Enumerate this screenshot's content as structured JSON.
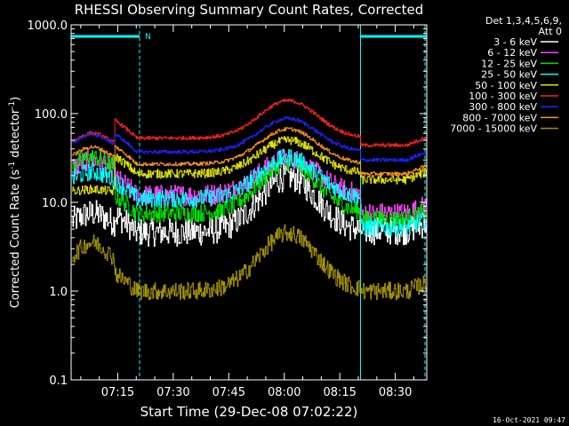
{
  "chart_data": {
    "type": "line",
    "title": "RHESSI Observing Summary Count Rates, Corrected",
    "xlabel": "Start Time (29-Dec-08 07:02:22)",
    "ylabel_main": "Corrected Count Rate (s",
    "ylabel_sup1": "-1",
    "ylabel_mid": " detector",
    "ylabel_sup2": "-1",
    "ylabel_end": ")",
    "y_scale": "log",
    "ylim": [
      0.1,
      1000
    ],
    "xlim_minutes": [
      62.4,
      158.5
    ],
    "x_tick_labels": [
      "07:15",
      "07:30",
      "07:45",
      "08:00",
      "08:15",
      "08:30"
    ],
    "x_tick_minutes": [
      75,
      90,
      105,
      120,
      135,
      150
    ],
    "y_tick_labels": [
      "0.1",
      "1.0",
      "10.0",
      "100.0",
      "1000.0"
    ],
    "y_tick_values": [
      0.1,
      1,
      10,
      100,
      1000
    ],
    "legend_header": [
      "Det 1,3,4,5,6,9,",
      "Att 0"
    ],
    "night_intervals_minutes": [
      [
        62.4,
        80.9
      ],
      [
        140.6,
        158.5
      ]
    ],
    "saa_marker": "N",
    "series": [
      {
        "name": "3 - 6 keV",
        "color": "#ffffff",
        "base": 4.6,
        "peak": 19.5,
        "pre": [
          5.5,
          7.5
        ],
        "post": 4.8,
        "noise": 0.16
      },
      {
        "name": "6 - 12 keV",
        "color": "#ff40ff",
        "base": 12.0,
        "peak": 31.0,
        "pre": [
          22.0,
          30.0
        ],
        "post": 7.5,
        "noise": 0.12
      },
      {
        "name": "12 - 25 keV",
        "color": "#00e000",
        "base": 7.5,
        "peak": 28.0,
        "pre": [
          24.0,
          32.0
        ],
        "post": 6.5,
        "noise": 0.1
      },
      {
        "name": "25 - 50 keV",
        "color": "#00ffff",
        "base": 11.0,
        "peak": 32.0,
        "pre": [
          17.0,
          22.0
        ],
        "post": 5.2,
        "noise": 0.1
      },
      {
        "name": "50 - 100 keV",
        "color": "#e0e000",
        "base": 21.0,
        "peak": 50.0,
        "pre": [
          13.0,
          14.0
        ],
        "post": 18.0,
        "noise": 0.05
      },
      {
        "name": "100 - 300 keV",
        "color": "#ff2020",
        "base": 53.0,
        "peak": 140.0,
        "pre": [
          44.0,
          60.0
        ],
        "post": 44.0,
        "noise": 0.02
      },
      {
        "name": "300 - 800 keV",
        "color": "#2020ff",
        "base": 37.0,
        "peak": 88.0,
        "pre": [
          42.0,
          58.0
        ],
        "post": 30.0,
        "noise": 0.02
      },
      {
        "name": "800 - 7000 keV",
        "color": "#ff9020",
        "base": 27.0,
        "peak": 67.0,
        "pre": [
          30.0,
          42.0
        ],
        "post": 21.0,
        "noise": 0.02
      },
      {
        "name": "7000 - 15000 keV",
        "color": "#a09000",
        "base": 1.0,
        "peak": 4.5,
        "pre": [
          2.0,
          3.5
        ],
        "post": 1.0,
        "noise": 0.1
      }
    ],
    "timestamp": "16-Oct-2021 09:47"
  }
}
